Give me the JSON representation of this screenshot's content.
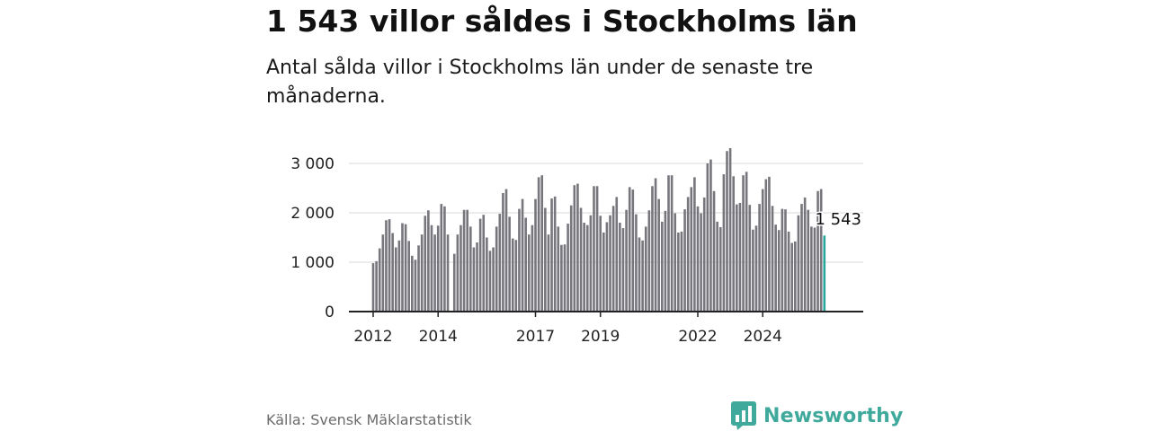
{
  "header": {
    "title": "1 543 villor såldes i Stockholms län",
    "subtitle": "Antal sålda villor i Stockholms län under de senaste tre månaderna."
  },
  "footer": {
    "source": "Källa: Svensk Mäklarstatistik",
    "brand": "Newsworthy",
    "brand_icon": "newsworthy-logo-icon"
  },
  "colors": {
    "bar": "#76767c",
    "highlight": "#27a79b",
    "grid": "#d9d9d9",
    "axis": "#222222",
    "brand": "#3fa99b"
  },
  "chart_data": {
    "type": "bar",
    "title": "1 543 villor såldes i Stockholms län",
    "subtitle": "Antal sålda villor i Stockholms län under de senaste tre månaderna.",
    "xlabel": "",
    "ylabel": "",
    "ylim": [
      0,
      3000
    ],
    "yticks": [
      0,
      1000,
      2000,
      3000
    ],
    "ytick_labels": [
      "0",
      "1 000",
      "2 000",
      "3 000"
    ],
    "xticks": [
      {
        "label": "2012",
        "index": 0
      },
      {
        "label": "2014",
        "index": 20
      },
      {
        "label": "2017",
        "index": 50
      },
      {
        "label": "2019",
        "index": 70
      },
      {
        "label": "2022",
        "index": 100
      },
      {
        "label": "2024",
        "index": 120
      }
    ],
    "grid": true,
    "highlight_label": "1 543",
    "values": [
      980,
      1020,
      1280,
      1560,
      1850,
      1870,
      1590,
      1300,
      1440,
      1790,
      1770,
      1430,
      1130,
      1050,
      1340,
      1560,
      1940,
      2050,
      1750,
      1560,
      1740,
      2180,
      2130,
      1560,
      null,
      1170,
      1560,
      1750,
      2060,
      2060,
      1720,
      1300,
      1400,
      1880,
      1960,
      1500,
      1230,
      1300,
      1720,
      1980,
      2400,
      2480,
      1920,
      1480,
      1450,
      2080,
      2280,
      1900,
      1560,
      1750,
      2280,
      2720,
      2760,
      2100,
      1560,
      2290,
      2330,
      1720,
      1350,
      1360,
      1780,
      2150,
      2560,
      2590,
      2100,
      1800,
      1750,
      1950,
      2540,
      2540,
      1940,
      1600,
      1810,
      1950,
      2140,
      2320,
      1800,
      1690,
      2060,
      2520,
      2470,
      1970,
      1500,
      1440,
      1720,
      2050,
      2540,
      2700,
      2280,
      1820,
      2040,
      2760,
      2760,
      1990,
      1600,
      1620,
      2070,
      2320,
      2520,
      2720,
      2130,
      1990,
      2310,
      3000,
      3080,
      2440,
      1820,
      1710,
      2780,
      3250,
      3310,
      2740,
      2170,
      2200,
      2760,
      2830,
      2160,
      1660,
      1740,
      2180,
      2480,
      2680,
      2730,
      2140,
      1760,
      1650,
      2080,
      2070,
      1620,
      1390,
      1420,
      1950,
      2180,
      2310,
      2060,
      1720,
      1700,
      2440,
      2480,
      1540
    ]
  }
}
